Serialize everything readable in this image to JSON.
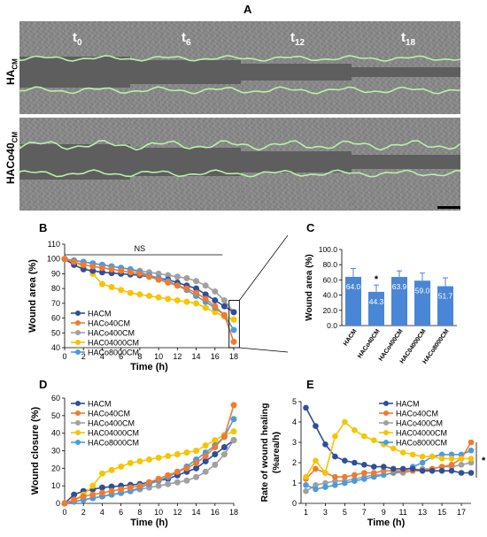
{
  "panels": {
    "A": {
      "letter": "A",
      "time_labels": [
        {
          "base": "t",
          "sub": "0"
        },
        {
          "base": "t",
          "sub": "6"
        },
        {
          "base": "t",
          "sub": "12"
        },
        {
          "base": "t",
          "sub": "18"
        }
      ],
      "rows": [
        {
          "base": "HA",
          "sub": "CM"
        },
        {
          "base": "HACo40",
          "sub": "CM"
        }
      ],
      "colors": {
        "edge_line": "#b8f0a8",
        "scale_bar": "#000000"
      }
    },
    "B": {
      "letter": "B",
      "annotation": "NS"
    },
    "C": {
      "letter": "C"
    },
    "D": {
      "letter": "D"
    },
    "E": {
      "letter": "E",
      "annotation": "*"
    }
  },
  "series_colors": [
    "#2e4f9a",
    "#f07a30",
    "#a0a0a0",
    "#f7c400",
    "#4c9be0"
  ],
  "chart_data": [
    {
      "id": "B",
      "type": "line",
      "xlabel": "Time (h)",
      "ylabel": "Wound area (%)",
      "xlim": [
        0,
        18
      ],
      "ylim": [
        40,
        110
      ],
      "xticks": [
        0,
        2,
        4,
        6,
        8,
        10,
        12,
        14,
        16,
        18
      ],
      "yticks": [
        40,
        50,
        60,
        70,
        80,
        90,
        100,
        110
      ],
      "legend": "lower-left",
      "x": [
        0,
        1,
        2,
        3,
        4,
        5,
        6,
        7,
        8,
        9,
        10,
        11,
        12,
        13,
        14,
        15,
        16,
        17,
        18
      ],
      "series": [
        {
          "name": "HACM",
          "values": [
            100,
            96,
            93,
            92,
            91,
            90.5,
            90,
            89.5,
            89,
            88,
            87,
            86,
            84,
            82,
            80,
            76,
            72,
            68,
            64
          ]
        },
        {
          "name": "HACo40CM",
          "values": [
            100,
            98,
            96,
            95,
            94,
            93,
            92,
            91,
            90,
            88,
            86,
            84,
            82,
            80,
            77,
            73,
            68,
            62,
            44
          ]
        },
        {
          "name": "HACo400CM",
          "values": [
            100,
            99,
            98,
            97,
            96,
            95,
            94,
            93,
            92,
            91,
            90,
            89,
            88,
            87,
            85,
            82,
            78,
            72,
            64
          ]
        },
        {
          "name": "HAC04000CM",
          "values": [
            100,
            98,
            95,
            90,
            83,
            81,
            79,
            77,
            76,
            75,
            74,
            73,
            72,
            71,
            70,
            67,
            64,
            61,
            59
          ]
        },
        {
          "name": "HACo8000CM",
          "values": [
            100,
            99,
            98,
            97,
            96,
            95,
            94,
            93,
            91,
            89,
            87,
            85,
            82,
            79,
            75,
            71,
            67,
            62,
            52
          ]
        }
      ]
    },
    {
      "id": "C",
      "type": "bar",
      "ylabel": "Wound area (%)",
      "ylim": [
        0,
        100
      ],
      "yticks": [
        0,
        20,
        40,
        60,
        80,
        100
      ],
      "ytick_labels": [
        "0.0",
        "20.0",
        "40.0",
        "60.0",
        "80.0",
        "100.0"
      ],
      "categories": [
        "HACM",
        "HACo40CM",
        "HACo400CM",
        "HAC04000CM",
        "HACo8000CM"
      ],
      "values": [
        64.0,
        44.3,
        63.9,
        59.0,
        51.7
      ],
      "value_labels": [
        "64.0",
        "44.3",
        "63.9",
        "59.0",
        "51.7"
      ],
      "errors": [
        11,
        9,
        8,
        10,
        11
      ],
      "significance": [
        "",
        "*",
        "",
        "",
        ""
      ],
      "bar_color": "#4a86d6"
    },
    {
      "id": "D",
      "type": "line",
      "xlabel": "Time (h)",
      "ylabel": "Wound closure (%)",
      "xlim": [
        0,
        18
      ],
      "ylim": [
        0,
        60
      ],
      "xticks": [
        0,
        2,
        4,
        6,
        8,
        10,
        12,
        14,
        16,
        18
      ],
      "yticks": [
        0,
        10,
        20,
        30,
        40,
        50,
        60
      ],
      "legend": "top-left",
      "x": [
        0,
        1,
        2,
        3,
        4,
        5,
        6,
        7,
        8,
        9,
        10,
        11,
        12,
        13,
        14,
        15,
        16,
        17,
        18
      ],
      "series": [
        {
          "name": "HACM",
          "values": [
            0,
            5,
            7,
            8,
            9,
            9.5,
            10,
            10.5,
            11,
            12,
            13,
            14,
            16,
            18,
            20,
            24,
            28,
            32,
            36
          ]
        },
        {
          "name": "HACo40CM",
          "values": [
            0,
            2,
            4,
            5,
            6,
            7,
            8,
            9,
            10,
            12,
            14,
            16,
            18,
            20,
            23,
            27,
            32,
            38,
            56
          ]
        },
        {
          "name": "HACo400CM",
          "values": [
            0,
            1,
            2,
            3,
            4,
            5,
            6,
            7,
            8,
            9,
            10,
            11,
            12,
            13,
            15,
            18,
            22,
            28,
            36
          ]
        },
        {
          "name": "HAC04000CM",
          "values": [
            0,
            2,
            5,
            10,
            17,
            19,
            21,
            23,
            24,
            25,
            26,
            27,
            28,
            29,
            30,
            33,
            36,
            39,
            41
          ]
        },
        {
          "name": "HACo8000CM",
          "values": [
            0,
            1,
            2,
            3,
            4,
            5,
            6,
            7,
            9,
            11,
            13,
            15,
            18,
            21,
            25,
            29,
            33,
            38,
            48
          ]
        }
      ]
    },
    {
      "id": "E",
      "type": "line",
      "xlabel": "Time (h)",
      "ylabel": "Rate of wound healing (%area/h)",
      "xlim": [
        0.5,
        18
      ],
      "ylim": [
        0,
        5
      ],
      "xticks": [
        1,
        3,
        5,
        7,
        9,
        11,
        13,
        15,
        17
      ],
      "yticks": [
        0,
        1,
        2,
        3,
        4,
        5
      ],
      "legend": "top-right",
      "x": [
        1,
        2,
        3,
        4,
        5,
        6,
        7,
        8,
        9,
        10,
        11,
        12,
        13,
        14,
        15,
        16,
        17,
        18
      ],
      "series": [
        {
          "name": "HACM",
          "values": [
            4.7,
            3.8,
            2.9,
            2.3,
            2.1,
            2.0,
            1.9,
            1.8,
            1.8,
            1.7,
            1.7,
            1.7,
            1.6,
            1.6,
            1.6,
            1.6,
            1.5,
            1.5
          ]
        },
        {
          "name": "HACo40CM",
          "values": [
            1.2,
            1.7,
            1.5,
            1.3,
            1.3,
            1.4,
            1.5,
            1.5,
            1.6,
            1.6,
            1.6,
            1.6,
            1.6,
            1.7,
            1.8,
            1.9,
            2.2,
            3.0
          ]
        },
        {
          "name": "HACo400CM",
          "values": [
            0.6,
            0.9,
            1.0,
            1.1,
            1.1,
            1.2,
            1.3,
            1.4,
            1.4,
            1.5,
            1.5,
            1.6,
            1.7,
            1.7,
            1.8,
            1.8,
            1.9,
            2.0
          ]
        },
        {
          "name": "HAC04000CM",
          "values": [
            1.3,
            2.1,
            1.5,
            3.3,
            4.0,
            3.6,
            3.3,
            3.1,
            2.9,
            2.7,
            2.5,
            2.4,
            2.3,
            2.3,
            2.2,
            2.2,
            2.2,
            2.2
          ]
        },
        {
          "name": "HACo8000CM",
          "values": [
            0.9,
            0.7,
            0.8,
            0.9,
            1.0,
            1.1,
            1.2,
            1.3,
            1.4,
            1.5,
            1.6,
            1.8,
            2.0,
            2.3,
            2.4,
            2.4,
            2.4,
            2.6
          ]
        }
      ]
    }
  ]
}
